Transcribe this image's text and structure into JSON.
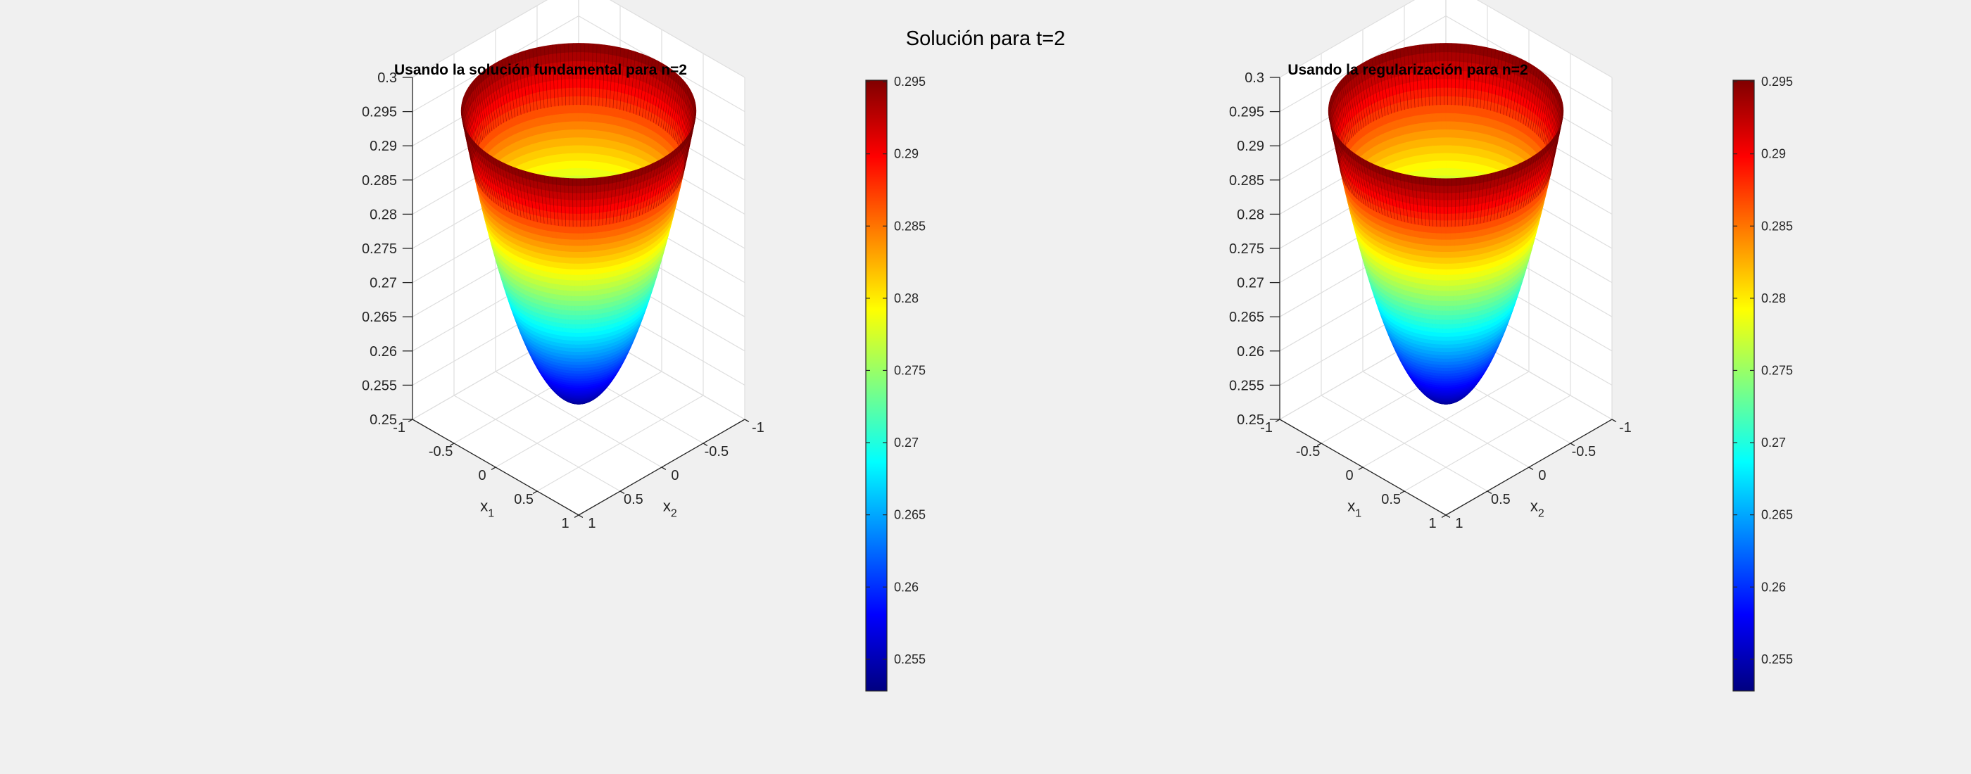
{
  "figure": {
    "title": "Solución para t=2",
    "background": "#f0f0f0"
  },
  "chart_data": [
    {
      "type": "surface",
      "title": "Usando la solución fundamental para n=2",
      "xlabel": "x",
      "xlabel_sub": "1",
      "ylabel": "x",
      "ylabel_sub": "2",
      "zlabel": "",
      "x_ticks": [
        "-1",
        "-0.5",
        "0",
        "0.5",
        "1"
      ],
      "y_ticks": [
        "-1",
        "-0.5",
        "0",
        "0.5",
        "1"
      ],
      "z_ticks": [
        "0.25",
        "0.255",
        "0.26",
        "0.265",
        "0.27",
        "0.275",
        "0.28",
        "0.285",
        "0.29",
        "0.295",
        "0.3"
      ],
      "xlim": [
        -1,
        1
      ],
      "ylim": [
        -1,
        1
      ],
      "zlim": [
        0.25,
        0.3
      ],
      "grid": true,
      "domain": "unit disk x1^2 + x2^2 <= 1",
      "surface": {
        "shape": "paraboloid",
        "z_at_center": 0.2528,
        "z_at_rim": 0.2951
      },
      "colormap": "jet",
      "colorbar": {
        "range": [
          0.2528,
          0.2951
        ],
        "ticks": [
          "0.255",
          "0.26",
          "0.265",
          "0.27",
          "0.275",
          "0.28",
          "0.285",
          "0.29",
          "0.295"
        ],
        "location": "right"
      }
    },
    {
      "type": "surface",
      "title": "Usando la regularización para n=2",
      "xlabel": "x",
      "xlabel_sub": "1",
      "ylabel": "x",
      "ylabel_sub": "2",
      "zlabel": "",
      "x_ticks": [
        "-1",
        "-0.5",
        "0",
        "0.5",
        "1"
      ],
      "y_ticks": [
        "-1",
        "-0.5",
        "0",
        "0.5",
        "1"
      ],
      "z_ticks": [
        "0.25",
        "0.255",
        "0.26",
        "0.265",
        "0.27",
        "0.275",
        "0.28",
        "0.285",
        "0.29",
        "0.295",
        "0.3"
      ],
      "xlim": [
        -1,
        1
      ],
      "ylim": [
        -1,
        1
      ],
      "zlim": [
        0.25,
        0.3
      ],
      "grid": true,
      "domain": "unit disk x1^2 + x2^2 <= 1",
      "surface": {
        "shape": "paraboloid",
        "z_at_center": 0.2528,
        "z_at_rim": 0.2951
      },
      "colormap": "jet",
      "colorbar": {
        "range": [
          0.2528,
          0.2951
        ],
        "ticks": [
          "0.255",
          "0.26",
          "0.265",
          "0.27",
          "0.275",
          "0.28",
          "0.285",
          "0.29",
          "0.295"
        ],
        "location": "right"
      }
    }
  ]
}
